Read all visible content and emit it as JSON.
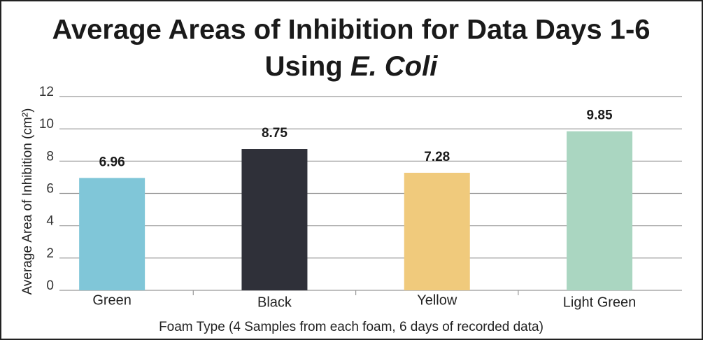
{
  "chart_data": {
    "type": "bar",
    "title": {
      "line1": "Average Areas of Inhibition for Data Days 1-6",
      "line2": "Using",
      "line2_italic": "E. Coli"
    },
    "categories": [
      "Green",
      "Black",
      "Yellow",
      "Light Green"
    ],
    "values": [
      6.96,
      8.75,
      7.28,
      9.85
    ],
    "colors": [
      "#80c6d8",
      "#2f3039",
      "#f0ca7c",
      "#aad6c1"
    ],
    "ylim": [
      0,
      12
    ],
    "yticks": [
      0,
      2,
      4,
      6,
      8,
      10,
      12
    ],
    "grid": true,
    "y_label": "Average Area of Inhibition (cm²)",
    "x_label": "Foam Type (4 Samples from each foam, 6 days of recorded data)"
  }
}
